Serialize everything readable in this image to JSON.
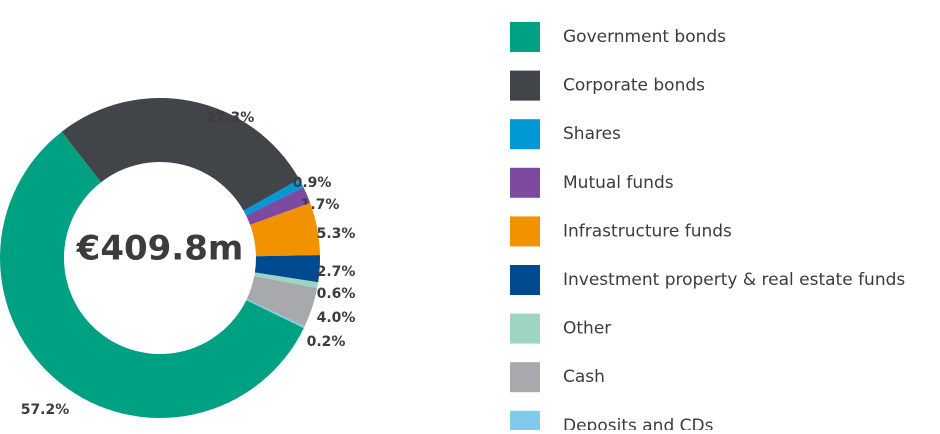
{
  "chart_data": {
    "type": "donut",
    "center_label": "€409.8m",
    "categories": [
      "Government bonds",
      "Corporate bonds",
      "Shares",
      "Mutual funds",
      "Infrastructure funds",
      "Investment property & real estate funds",
      "Other",
      "Cash",
      "Deposits and CDs"
    ],
    "values": [
      57.2,
      27.3,
      0.9,
      1.7,
      5.3,
      2.7,
      0.6,
      4.0,
      0.2
    ],
    "value_labels": [
      "57.2%",
      "27.3%",
      "0.9%",
      "1.7%",
      "5.3%",
      "2.7%",
      "0.6%",
      "4.0%",
      "0.2%"
    ],
    "colors": [
      "#00a082",
      "#414449",
      "#0099d6",
      "#7e4a9f",
      "#f39200",
      "#004a8f",
      "#9dd4c4",
      "#a7a9ac",
      "#7ecbec"
    ],
    "legend": "right"
  }
}
